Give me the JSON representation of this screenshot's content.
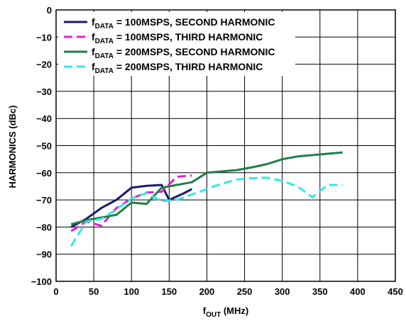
{
  "chart_data": {
    "type": "line",
    "xlabel": {
      "main": "f",
      "sub": "OUT",
      "rest": " (MHz)"
    },
    "ylabel": "HARMONICS (dBc)",
    "xlim": [
      0,
      450
    ],
    "ylim": [
      -100,
      0
    ],
    "xticks": [
      0,
      50,
      100,
      150,
      200,
      250,
      300,
      350,
      400,
      450
    ],
    "yticks": [
      0,
      -10,
      -20,
      -30,
      -40,
      -50,
      -60,
      -70,
      -80,
      -90,
      -100
    ],
    "x_tick_labels": [
      "0",
      "50",
      "100",
      "150",
      "200",
      "250",
      "300",
      "350",
      "400",
      "450"
    ],
    "y_tick_labels": [
      "0",
      "−10",
      "−20",
      "−30",
      "−40",
      "−50",
      "−60",
      "−70",
      "−80",
      "−90",
      "−100"
    ],
    "grid": true,
    "legend_position": "top-left",
    "series": [
      {
        "name_main": "f",
        "name_sub": "DATA",
        "name_rest": " = 100MSPS, SECOND HARMONIC",
        "color": "#1a1a6e",
        "dash": "solid",
        "x": [
          20,
          40,
          60,
          80,
          100,
          120,
          140,
          150,
          170,
          180
        ],
        "y": [
          -80,
          -77,
          -73,
          -70,
          -65.5,
          -64.8,
          -64.5,
          -70,
          -67.5,
          -66
        ]
      },
      {
        "name_main": "f",
        "name_sub": "DATA",
        "name_rest": " = 100MSPS, THIRD HARMONIC",
        "color": "#e020d0",
        "dash": "dashed",
        "x": [
          20,
          40,
          60,
          80,
          100,
          120,
          140,
          160,
          180
        ],
        "y": [
          -81.5,
          -78,
          -79.5,
          -73,
          -69.5,
          -67.3,
          -67,
          -61.5,
          -61
        ]
      },
      {
        "name_main": "f",
        "name_sub": "DATA",
        "name_rest": " = 200MSPS, SECOND HARMONIC",
        "color": "#1f7f45",
        "dash": "solid",
        "x": [
          20,
          40,
          60,
          80,
          100,
          120,
          140,
          160,
          180,
          200,
          220,
          240,
          260,
          280,
          300,
          320,
          340,
          360,
          380
        ],
        "y": [
          -79,
          -77.5,
          -76.5,
          -75.5,
          -71,
          -71.5,
          -65.5,
          -64.5,
          -63.5,
          -60,
          -59.5,
          -59,
          -58,
          -56.8,
          -55,
          -54,
          -53.5,
          -53,
          -52.5
        ]
      },
      {
        "name_main": "f",
        "name_sub": "DATA",
        "name_rest": " = 200MSPS, THIRD HARMONIC",
        "color": "#30e8e8",
        "dash": "dashed",
        "x": [
          20,
          40,
          60,
          80,
          100,
          120,
          140,
          160,
          180,
          200,
          220,
          240,
          260,
          280,
          300,
          320,
          340,
          360,
          380
        ],
        "y": [
          -87,
          -78,
          -77,
          -73.5,
          -69.5,
          -67.5,
          -70.5,
          -70,
          -68,
          -66,
          -64,
          -62.5,
          -62,
          -61.8,
          -63,
          -65,
          -69,
          -64.5,
          -64.5
        ]
      }
    ]
  }
}
